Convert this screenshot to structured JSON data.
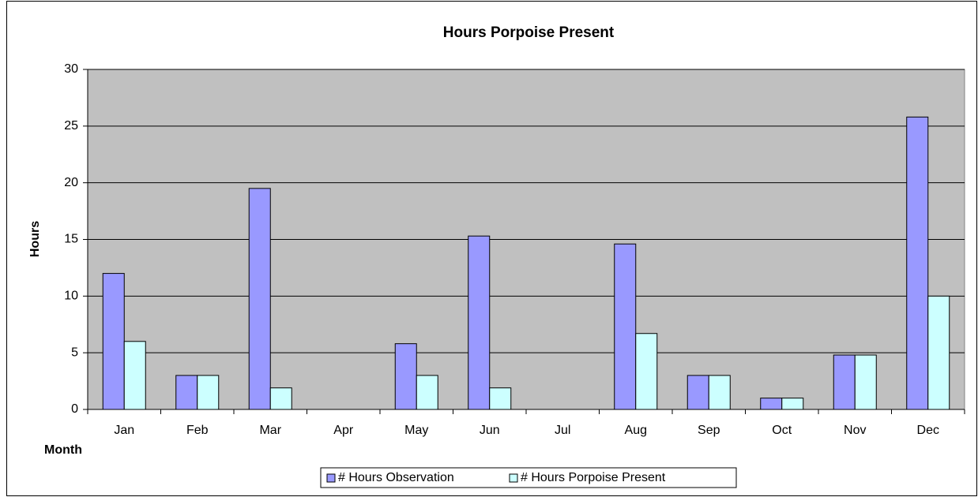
{
  "chart_data": {
    "type": "bar",
    "title": "Hours Porpoise Present",
    "x_label": "Month",
    "y_label": "Hours",
    "categories": [
      "Jan",
      "Feb",
      "Mar",
      "Apr",
      "May",
      "Jun",
      "Jul",
      "Aug",
      "Sep",
      "Oct",
      "Nov",
      "Dec"
    ],
    "series": [
      {
        "name": "# Hours Observation",
        "color": "#9999ff",
        "values": [
          12,
          3,
          19.5,
          0,
          5.8,
          15.3,
          0,
          14.6,
          3,
          1,
          4.8,
          25.8
        ]
      },
      {
        "name": "# Hours Porpoise Present",
        "color": "#ccffff",
        "values": [
          6,
          3,
          1.9,
          0,
          3,
          1.9,
          0,
          6.7,
          3,
          1,
          4.8,
          10
        ]
      }
    ],
    "ylim": [
      0,
      30
    ],
    "yticks": [
      0,
      5,
      10,
      15,
      20,
      25,
      30
    ],
    "grid": true,
    "legend": "bottom"
  }
}
